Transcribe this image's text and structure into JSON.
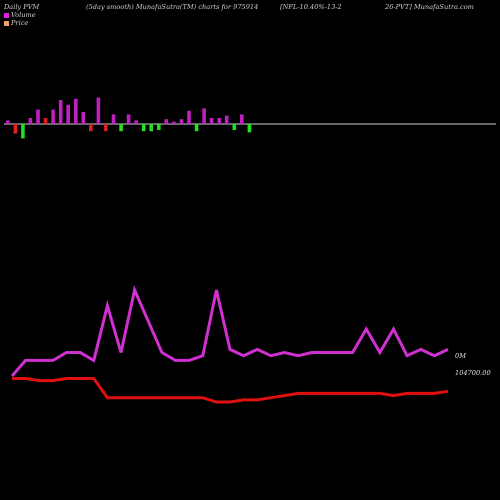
{
  "header": {
    "left": "Daily PVM",
    "center_left": "(5day smooth) MunafaSutra(TM) charts for 975914",
    "center_right": "[NFL-10.40%-13-2",
    "right": "26-PVT] MunafaSutra.com"
  },
  "legend": [
    {
      "label": "Volume",
      "color": "#e020e0"
    },
    {
      "label": "Price",
      "color": "#f0a070"
    }
  ],
  "colors": {
    "up_bar": "#c020c0",
    "down_bar": "#e02020",
    "green_bar": "#20e020",
    "volume_line": "#d030d0",
    "price_line": "#e01010",
    "baseline": "#d0d0d0"
  },
  "chart_data": {
    "type": "bar+line",
    "bars": {
      "values": [
        3,
        -8,
        -12,
        5,
        12,
        5,
        12,
        20,
        16,
        21,
        10,
        -6,
        22,
        -6,
        8,
        -6,
        8,
        3,
        -6,
        -6,
        -5,
        4,
        2,
        4,
        11,
        -6,
        13,
        5,
        5,
        7,
        -5,
        8,
        -7
      ],
      "colors": [
        "up",
        "down",
        "green",
        "up",
        "up",
        "down",
        "up",
        "up",
        "up",
        "up",
        "up",
        "down",
        "up",
        "down",
        "up",
        "green",
        "up",
        "up",
        "green",
        "green",
        "green",
        "up",
        "up",
        "up",
        "up",
        "green",
        "up",
        "up",
        "up",
        "up",
        "green",
        "up",
        "green"
      ]
    },
    "volume_line": [
      55,
      45,
      45,
      45,
      40,
      40,
      45,
      10,
      40,
      0,
      20,
      40,
      45,
      45,
      42,
      0,
      38,
      42,
      38,
      42,
      40,
      42,
      40,
      40,
      40,
      40,
      25,
      40,
      25,
      42,
      38,
      42,
      38
    ],
    "price_line": [
      48,
      48,
      49,
      49,
      48,
      48,
      48,
      57,
      57,
      57,
      57,
      57,
      57,
      57,
      57,
      59,
      59,
      58,
      58,
      57,
      56,
      55,
      55,
      55,
      55,
      55,
      55,
      55,
      56,
      55,
      55,
      55,
      54
    ],
    "labels": {
      "volume_axis": "0M",
      "price_axis": "104700.00"
    }
  }
}
